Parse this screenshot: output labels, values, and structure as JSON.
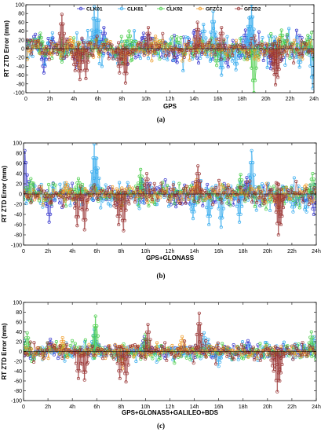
{
  "chart_data": [
    {
      "type": "scatter",
      "caption": "(a)",
      "xlabel": "GPS",
      "ylabel": "RT ZTD Error (mm)",
      "xlim": [
        0,
        24
      ],
      "ylim": [
        -100,
        100
      ],
      "x_ticks": [
        "0",
        "2h",
        "4h",
        "6h",
        "8h",
        "10h",
        "12h",
        "14h",
        "16h",
        "18h",
        "20h",
        "22h",
        "24h"
      ],
      "y_ticks": [
        "-100",
        "-80",
        "-60",
        "-40",
        "-20",
        "0",
        "20",
        "40",
        "60",
        "80",
        "100"
      ],
      "grid": false,
      "legend_position": "top",
      "series": [
        {
          "name": "CLK01",
          "color": "#3333cc",
          "marker": "circle",
          "range": [
            -35,
            35
          ],
          "spikes": [
            [
              1.5,
              -55
            ],
            [
              2.2,
              22
            ],
            [
              6.5,
              48
            ],
            [
              9.8,
              35
            ],
            [
              12.5,
              -28
            ],
            [
              18.3,
              42
            ],
            [
              20.4,
              -45
            ]
          ]
        },
        {
          "name": "CLK81",
          "color": "#33aaee",
          "marker": "circle",
          "range": [
            -40,
            40
          ],
          "spikes": [
            [
              5.7,
              95
            ],
            [
              6.0,
              90
            ],
            [
              14.8,
              55
            ],
            [
              15.6,
              85
            ],
            [
              16.3,
              -60
            ],
            [
              17.5,
              -48
            ],
            [
              18.6,
              70
            ],
            [
              18.8,
              100
            ],
            [
              22.8,
              -42
            ],
            [
              23.9,
              -90
            ]
          ]
        },
        {
          "name": "CLK92",
          "color": "#44cc44",
          "marker": "circle",
          "range": [
            -30,
            30
          ],
          "spikes": [
            [
              1.2,
              35
            ],
            [
              3.0,
              -30
            ],
            [
              8.6,
              40
            ],
            [
              15.9,
              -38
            ],
            [
              19.0,
              -100
            ],
            [
              21.3,
              42
            ],
            [
              23.5,
              30
            ]
          ]
        },
        {
          "name": "GFZC2",
          "color": "#ee9922",
          "marker": "circle",
          "range": [
            -25,
            25
          ],
          "spikes": [
            [
              3.7,
              25
            ],
            [
              4.4,
              -42
            ],
            [
              8.2,
              -35
            ],
            [
              10.8,
              28
            ],
            [
              14.5,
              22
            ],
            [
              20.8,
              -30
            ]
          ]
        },
        {
          "name": "GFZD2",
          "color": "#993333",
          "marker": "circle",
          "range": [
            -30,
            30
          ],
          "spikes": [
            [
              3.0,
              78
            ],
            [
              4.1,
              -50
            ],
            [
              4.5,
              -70
            ],
            [
              5.0,
              -68
            ],
            [
              7.8,
              -55
            ],
            [
              8.3,
              -78
            ],
            [
              10.2,
              48
            ],
            [
              14.3,
              60
            ],
            [
              16.3,
              48
            ],
            [
              20.6,
              -48
            ],
            [
              20.8,
              -82
            ],
            [
              21.0,
              -65
            ]
          ]
        }
      ]
    },
    {
      "type": "scatter",
      "caption": "(b)",
      "xlabel": "GPS+GLONASS",
      "ylabel": "RT ZTD Error (mm)",
      "xlim": [
        0,
        24
      ],
      "ylim": [
        -100,
        100
      ],
      "x_ticks": [
        "0",
        "2h",
        "4h",
        "6h",
        "8h",
        "10h",
        "12h",
        "14h",
        "16h",
        "18h",
        "20h",
        "22h",
        "24h"
      ],
      "y_ticks": [
        "-100",
        "-80",
        "-60",
        "-40",
        "-20",
        "0",
        "20",
        "40",
        "60",
        "80",
        "100"
      ],
      "grid": false,
      "series": [
        {
          "name": "CLK01",
          "color": "#3333cc",
          "marker": "circle",
          "range": [
            -25,
            25
          ],
          "spikes": [
            [
              0.1,
              85
            ],
            [
              2.1,
              -55
            ],
            [
              9.7,
              28
            ],
            [
              12.5,
              -25
            ],
            [
              18.3,
              32
            ],
            [
              23.8,
              -40
            ]
          ]
        },
        {
          "name": "CLK81",
          "color": "#33aaee",
          "marker": "circle",
          "range": [
            -30,
            30
          ],
          "spikes": [
            [
              5.8,
              98
            ],
            [
              6.0,
              70
            ],
            [
              13.9,
              -48
            ],
            [
              15.2,
              -60
            ],
            [
              16.2,
              -65
            ],
            [
              17.7,
              -55
            ],
            [
              18.7,
              85
            ],
            [
              22.1,
              -35
            ],
            [
              23.2,
              -35
            ]
          ]
        },
        {
          "name": "CLK92",
          "color": "#44cc44",
          "marker": "circle",
          "range": [
            -25,
            25
          ],
          "spikes": [
            [
              0.6,
              30
            ],
            [
              4.5,
              30
            ],
            [
              9.6,
              48
            ],
            [
              17.8,
              38
            ],
            [
              23.7,
              40
            ]
          ]
        },
        {
          "name": "GFZC2",
          "color": "#ee9922",
          "marker": "circle",
          "range": [
            -20,
            20
          ],
          "spikes": [
            [
              3.5,
              22
            ],
            [
              8.0,
              -32
            ],
            [
              14.2,
              28
            ],
            [
              20.9,
              -35
            ]
          ]
        },
        {
          "name": "GFZD2",
          "color": "#993333",
          "marker": "circle",
          "range": [
            -25,
            25
          ],
          "spikes": [
            [
              4.4,
              -62
            ],
            [
              5.0,
              -70
            ],
            [
              7.8,
              -60
            ],
            [
              8.2,
              -72
            ],
            [
              10.1,
              40
            ],
            [
              14.3,
              55
            ],
            [
              20.9,
              -80
            ],
            [
              21.1,
              -60
            ]
          ]
        }
      ]
    },
    {
      "type": "scatter",
      "caption": "(c)",
      "xlabel": "GPS+GLONASS+GALILEO+BDS",
      "ylabel": "RT ZTD Error (mm)",
      "xlim": [
        0,
        24
      ],
      "ylim": [
        -100,
        100
      ],
      "x_ticks": [
        "0",
        "2h",
        "4h",
        "6h",
        "8h",
        "10h",
        "12h",
        "14h",
        "16h",
        "18h",
        "20h",
        "22h",
        "24h"
      ],
      "y_ticks": [
        "-100",
        "-80",
        "-60",
        "-40",
        "-20",
        "0",
        "20",
        "40",
        "60",
        "80",
        "100"
      ],
      "grid": false,
      "series": [
        {
          "name": "CLK01",
          "color": "#3333cc",
          "marker": "circle",
          "range": [
            -15,
            15
          ],
          "spikes": [
            [
              2.2,
              25
            ],
            [
              9.9,
              30
            ],
            [
              18.4,
              22
            ]
          ]
        },
        {
          "name": "CLK81",
          "color": "#33aaee",
          "marker": "circle",
          "range": [
            -20,
            20
          ],
          "spikes": [
            [
              5.8,
              45
            ],
            [
              14.8,
              38
            ],
            [
              16.0,
              -30
            ],
            [
              23.8,
              30
            ]
          ]
        },
        {
          "name": "CLK92",
          "color": "#44cc44",
          "marker": "circle",
          "range": [
            -20,
            20
          ],
          "spikes": [
            [
              0.3,
              38
            ],
            [
              5.9,
              72
            ],
            [
              10.0,
              35
            ],
            [
              23.6,
              40
            ]
          ]
        },
        {
          "name": "GFZC2",
          "color": "#ee9922",
          "marker": "circle",
          "range": [
            -15,
            15
          ],
          "spikes": [
            [
              3.2,
              28
            ],
            [
              8.1,
              -35
            ],
            [
              13.0,
              30
            ]
          ]
        },
        {
          "name": "GFZD2",
          "color": "#993333",
          "marker": "circle",
          "range": [
            -20,
            20
          ],
          "spikes": [
            [
              4.5,
              -55
            ],
            [
              5.0,
              -58
            ],
            [
              7.9,
              -55
            ],
            [
              8.4,
              -62
            ],
            [
              10.2,
              55
            ],
            [
              14.4,
              78
            ],
            [
              20.5,
              -40
            ],
            [
              20.8,
              -82
            ],
            [
              21.0,
              -60
            ]
          ]
        }
      ]
    }
  ]
}
